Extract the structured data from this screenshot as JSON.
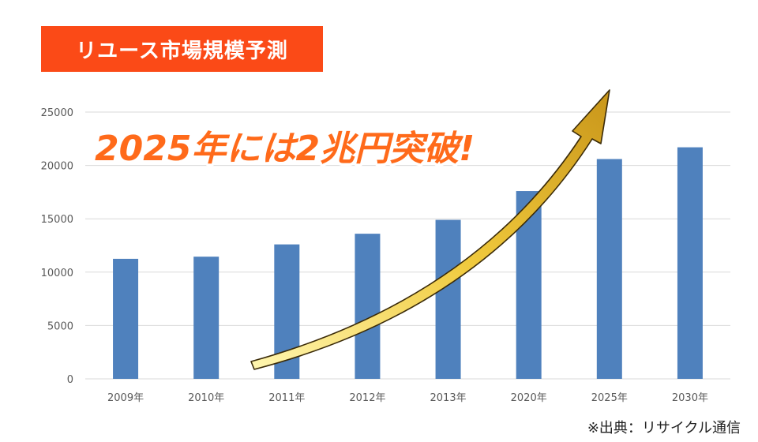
{
  "header": {
    "title": "リユース市場規模予測"
  },
  "annotation": {
    "callout": "2025年には2兆円突破!"
  },
  "footer": {
    "source": "※出典：リサイクル通信"
  },
  "colors": {
    "bar": "#4f81bd",
    "title_bg": "#fb4a17",
    "callout_fill": "#ff6a1a",
    "arrow": "#f3cf46"
  },
  "chart_data": {
    "type": "bar",
    "categories": [
      "2009年",
      "2010年",
      "2011年",
      "2012年",
      "2013年",
      "2020年",
      "2025年",
      "2030年"
    ],
    "values": [
      11250,
      11450,
      12600,
      13600,
      14900,
      17600,
      20600,
      21700
    ],
    "ylim": [
      0,
      25000
    ],
    "yticks": [
      0,
      5000,
      10000,
      15000,
      20000,
      25000
    ],
    "grid": true,
    "xlabel": "",
    "ylabel": ""
  }
}
